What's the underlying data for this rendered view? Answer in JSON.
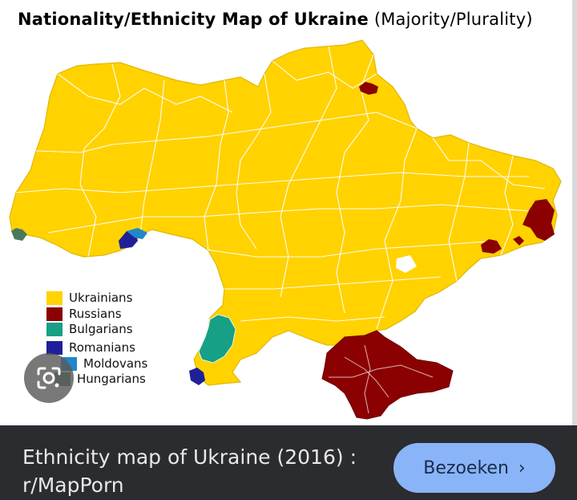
{
  "map": {
    "title_bold": "Nationality/Ethnicity Map of Ukraine",
    "title_light": "(Majority/Plurality)",
    "colors": {
      "ukrainians": "#ffd200",
      "russians": "#8b0000",
      "bulgarians": "#16a085",
      "romanians": "#1f1f9a",
      "moldovans": "#1e88c8",
      "hungarians": "#4a7a5a",
      "borders": "#ffffff"
    },
    "legend": [
      {
        "label": "Ukrainians",
        "color": "#ffd200"
      },
      {
        "label": "Russians",
        "color": "#8b0000"
      },
      {
        "label": "Bulgarians",
        "color": "#16a085"
      },
      {
        "label": "Romanians",
        "color": "#1f1f9a"
      },
      {
        "label": "Moldovans",
        "color": "#1e88c8"
      },
      {
        "label": "Hungarians",
        "color": "#4a7a5a"
      }
    ]
  },
  "lens_button": {
    "icon": "google-lens-icon"
  },
  "result": {
    "caption": "Ethnicity map of Ukraine (2016) : r/MapPorn",
    "visit_label": "Bezoeken",
    "visit_icon": "chevron-right-icon"
  }
}
